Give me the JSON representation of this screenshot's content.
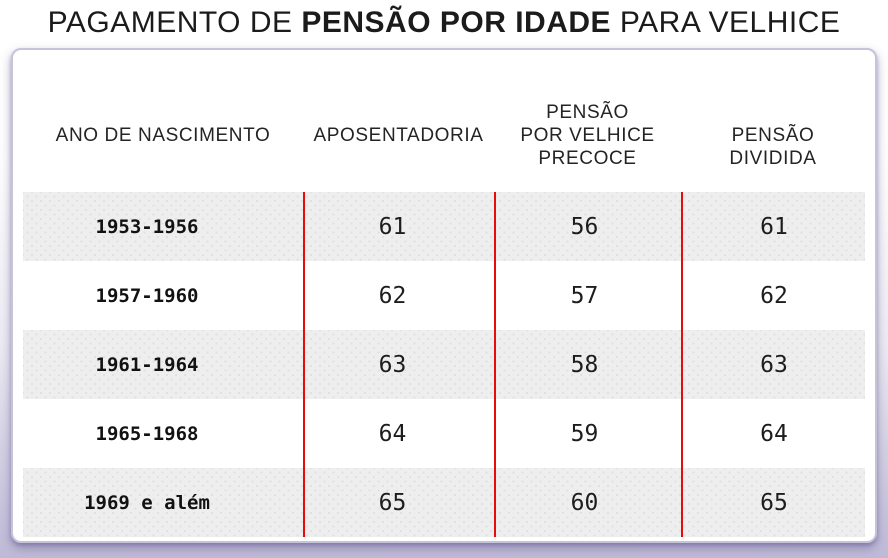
{
  "title": {
    "prefix": "PAGAMENTO DE ",
    "highlight": "PENSÃO POR IDADE",
    "suffix": " PARA VELHICE"
  },
  "chart_data": {
    "type": "table",
    "title": "PAGAMENTO DE PENSÃO POR IDADE PARA VELHICE",
    "columns": [
      "ANO DE NASCIMENTO",
      "APOSENTADORIA",
      "PENSÃO POR VELHICE PRECOCE",
      "PENSÃO DIVIDIDA"
    ],
    "column_display": [
      "ANO DE NASCIMENTO",
      "APOSENTADORIA",
      "PENSÃO\nPOR VELHICE\nPRECOCE",
      "PENSÃO\nDIVIDIDA"
    ],
    "rows": [
      [
        "1953-1956",
        61,
        56,
        61
      ],
      [
        "1957-1960",
        62,
        57,
        62
      ],
      [
        "1961-1964",
        63,
        58,
        63
      ],
      [
        "1965-1968",
        64,
        59,
        64
      ],
      [
        "1969 e além",
        65,
        60,
        65
      ]
    ]
  },
  "colors": {
    "accent_red": "#e60c0c",
    "row_shade": "#efeeee",
    "row_dot": "#e0dede",
    "card_border": "#c7c3d9",
    "background_bottom": "#bfbad7",
    "text": "#1b1b1b"
  }
}
